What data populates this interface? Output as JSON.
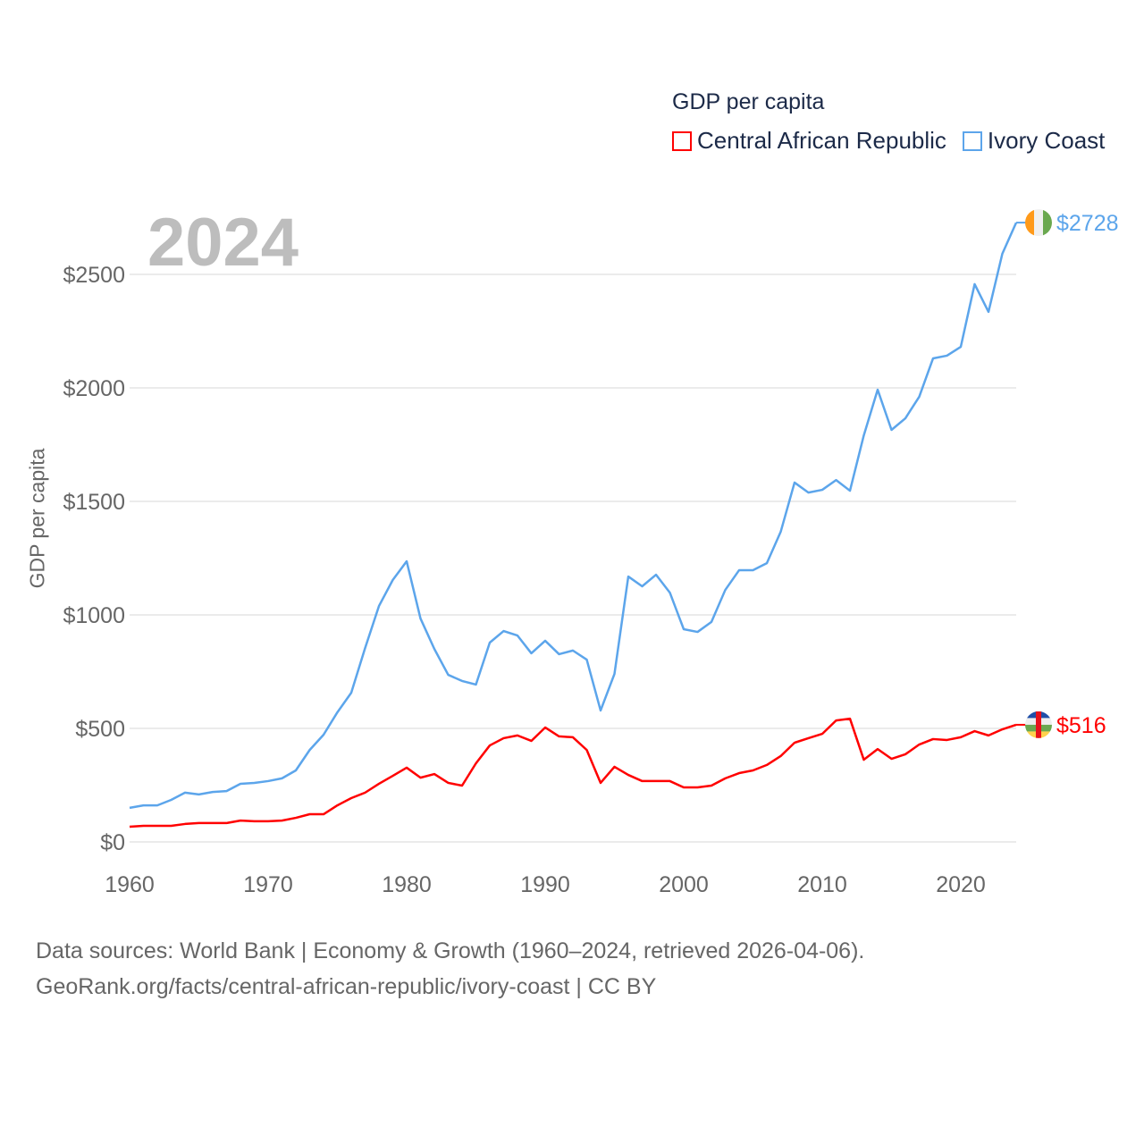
{
  "chart_data": {
    "type": "line",
    "title": "",
    "legend_title": "GDP per capita",
    "legend_position": "top-right",
    "year_label": "2024",
    "xlabel": "",
    "ylabel": "GDP per capita",
    "xlim": [
      1960,
      2024
    ],
    "ylim": [
      0,
      2750
    ],
    "grid": true,
    "x_ticks": [
      1960,
      1970,
      1980,
      1990,
      2000,
      2010,
      2020
    ],
    "x_tick_labels": [
      "1960",
      "1970",
      "1980",
      "1990",
      "2000",
      "2010",
      "2020"
    ],
    "y_ticks": [
      0,
      500,
      1000,
      1500,
      2000,
      2500
    ],
    "y_tick_labels": [
      "$0",
      "$500",
      "$1000",
      "$1500",
      "$2000",
      "$2500"
    ],
    "x": [
      1960,
      1961,
      1962,
      1963,
      1964,
      1965,
      1966,
      1967,
      1968,
      1969,
      1970,
      1971,
      1972,
      1973,
      1974,
      1975,
      1976,
      1977,
      1978,
      1979,
      1980,
      1981,
      1982,
      1983,
      1984,
      1985,
      1986,
      1987,
      1988,
      1989,
      1990,
      1991,
      1992,
      1993,
      1994,
      1995,
      1996,
      1997,
      1998,
      1999,
      2000,
      2001,
      2002,
      2003,
      2004,
      2005,
      2006,
      2007,
      2008,
      2009,
      2010,
      2011,
      2012,
      2013,
      2014,
      2015,
      2016,
      2017,
      2018,
      2019,
      2020,
      2021,
      2022,
      2023,
      2024
    ],
    "series": [
      {
        "name": "Central African Republic",
        "color": "#ff0000",
        "end_label": "$516",
        "values": [
          67,
          71,
          71,
          71,
          79,
          83,
          83,
          83,
          94,
          91,
          91,
          94,
          106,
          122,
          122,
          161,
          193,
          217,
          256,
          291,
          327,
          283,
          299,
          260,
          248,
          346,
          425,
          457,
          469,
          445,
          504,
          465,
          461,
          405,
          260,
          331,
          295,
          268,
          268,
          268,
          240,
          240,
          248,
          280,
          303,
          315,
          339,
          378,
          437,
          457,
          476,
          535,
          543,
          362,
          409,
          366,
          386,
          429,
          453,
          449,
          461,
          488,
          469,
          496,
          516
        ]
      },
      {
        "name": "Ivory Coast",
        "color": "#5ca5eb",
        "end_label": "$2728",
        "values": [
          150,
          161,
          161,
          185,
          217,
          209,
          220,
          224,
          256,
          260,
          268,
          280,
          315,
          405,
          472,
          571,
          657,
          854,
          1039,
          1154,
          1236,
          984,
          850,
          736,
          709,
          693,
          878,
          929,
          909,
          831,
          886,
          827,
          843,
          803,
          579,
          740,
          1169,
          1126,
          1177,
          1098,
          937,
          925,
          969,
          1110,
          1197,
          1197,
          1228,
          1366,
          1583,
          1539,
          1551,
          1594,
          1547,
          1791,
          1992,
          1815,
          1866,
          1961,
          2130,
          2142,
          2181,
          2457,
          2335,
          2591,
          2728
        ]
      }
    ]
  },
  "footer": {
    "line1": "Data sources: World Bank | Economy & Growth (1960–2024, retrieved 2026-04-06).",
    "line2": "GeoRank.org/facts/central-african-republic/ivory-coast | CC BY"
  }
}
